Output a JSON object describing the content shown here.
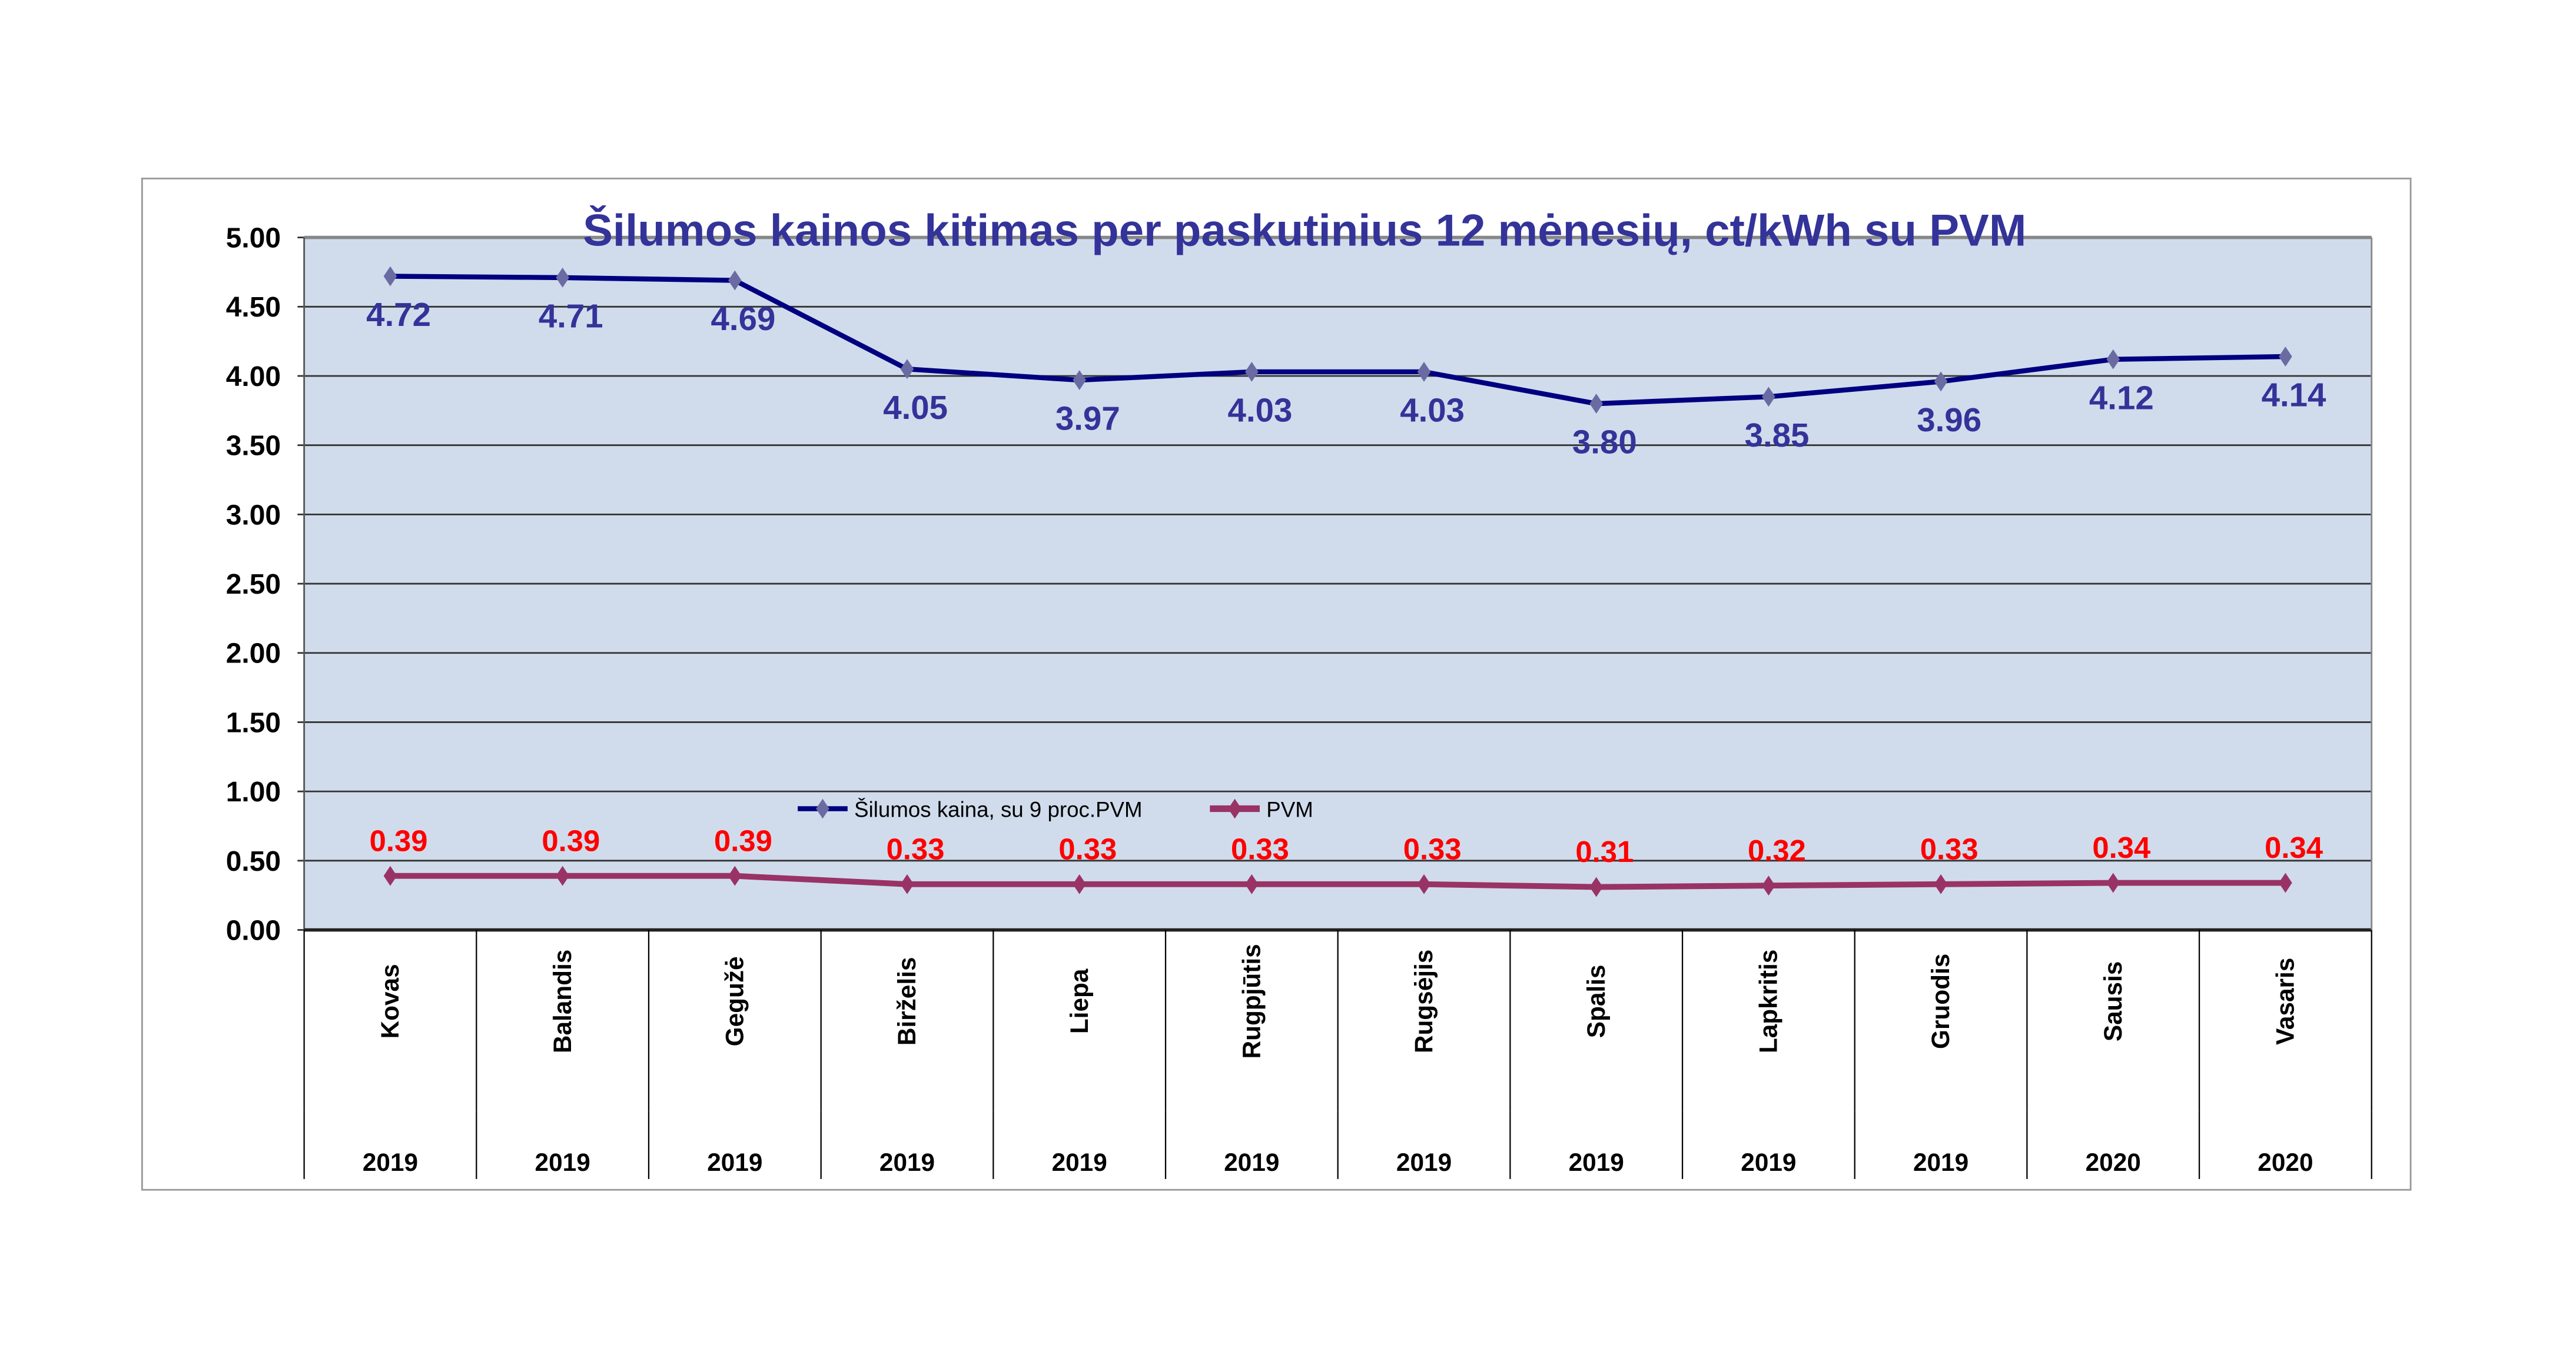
{
  "chart_data": {
    "type": "line",
    "title": "Šilumos kainos kitimas per paskutinius 12 mėnesių, ct/kWh su PVM",
    "categories": [
      "Kovas",
      "Balandis",
      "Gegužė",
      "Birželis",
      "Liepa",
      "Rugpjūtis",
      "Rugsėjis",
      "Spalis",
      "Lapkritis",
      "Gruodis",
      "Sausis",
      "Vasaris"
    ],
    "years": [
      "2019",
      "2019",
      "2019",
      "2019",
      "2019",
      "2019",
      "2019",
      "2019",
      "2019",
      "2019",
      "2020",
      "2020"
    ],
    "yticks": [
      "0.00",
      "0.50",
      "1.00",
      "1.50",
      "2.00",
      "2.50",
      "3.00",
      "3.50",
      "4.00",
      "4.50",
      "5.00"
    ],
    "ylim": [
      0,
      5
    ],
    "grid": true,
    "legend_position": "center",
    "series": [
      {
        "name": "Šilumos kaina, su 9 proc.PVM",
        "color": "#000080",
        "marker_color": "#6b6ba3",
        "label_color": "#333399",
        "values": [
          4.72,
          4.71,
          4.69,
          4.05,
          3.97,
          4.03,
          4.03,
          3.8,
          3.85,
          3.96,
          4.12,
          4.14
        ],
        "labels": [
          "4.72",
          "4.71",
          "4.69",
          "4.05",
          "3.97",
          "4.03",
          "4.03",
          "3.80",
          "3.85",
          "3.96",
          "4.12",
          "4.14"
        ]
      },
      {
        "name": "PVM",
        "color": "#993366",
        "marker_color": "#993366",
        "label_color": "#ff0000",
        "values": [
          0.39,
          0.39,
          0.39,
          0.33,
          0.33,
          0.33,
          0.33,
          0.31,
          0.32,
          0.33,
          0.34,
          0.34
        ],
        "labels": [
          "0.39",
          "0.39",
          "0.39",
          "0.33",
          "0.33",
          "0.33",
          "0.33",
          "0.31",
          "0.32",
          "0.33",
          "0.34",
          "0.34"
        ]
      }
    ]
  }
}
